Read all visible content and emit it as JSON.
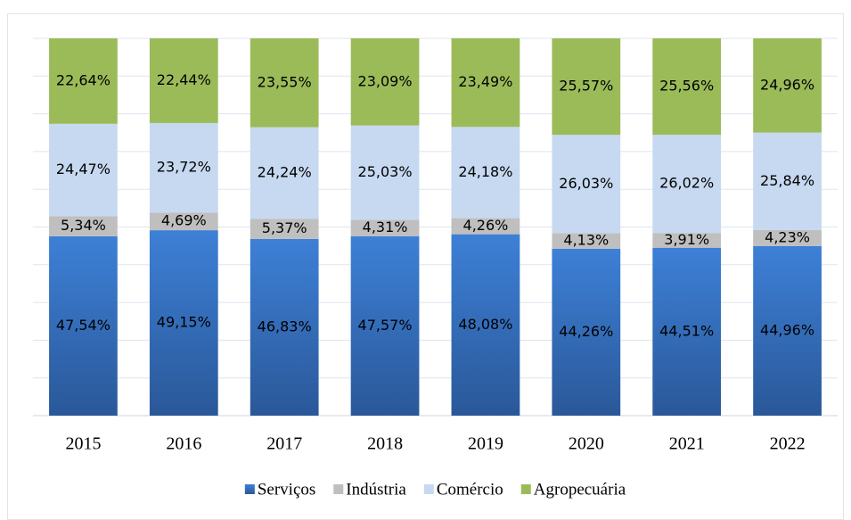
{
  "chart_data": {
    "type": "stacked_bar",
    "categories": [
      "2015",
      "2016",
      "2017",
      "2018",
      "2019",
      "2020",
      "2021",
      "2022"
    ],
    "series": [
      {
        "name": "Serviços",
        "color": "#3672c4",
        "values": [
          47.54,
          49.15,
          46.83,
          47.57,
          48.08,
          44.26,
          44.51,
          44.96
        ],
        "value_labels": [
          "47,54%",
          "49,15%",
          "46,83%",
          "47,57%",
          "48,08%",
          "44,26%",
          "44,51%",
          "44,96%"
        ]
      },
      {
        "name": "Indústria",
        "color": "#bfbfbf",
        "values": [
          5.34,
          4.69,
          5.37,
          4.31,
          4.26,
          4.13,
          3.91,
          4.23
        ],
        "value_labels": [
          "5,34%",
          "4,69%",
          "5,37%",
          "4,31%",
          "4,26%",
          "4,13%",
          "3,91%",
          "4,23%"
        ]
      },
      {
        "name": "Comércio",
        "color": "#c6d9f0",
        "values": [
          24.47,
          23.72,
          24.24,
          25.03,
          24.18,
          26.03,
          26.02,
          25.84
        ],
        "value_labels": [
          "24,47%",
          "23,72%",
          "24,24%",
          "25,03%",
          "24,18%",
          "26,03%",
          "26,02%",
          "25,84%"
        ]
      },
      {
        "name": "Agropecuária",
        "color": "#9bbb59",
        "values": [
          22.64,
          22.44,
          23.55,
          23.09,
          23.49,
          25.57,
          25.56,
          24.96
        ],
        "value_labels": [
          "22,64%",
          "22,44%",
          "23,55%",
          "23,09%",
          "23,49%",
          "25,57%",
          "25,56%",
          "24,96%"
        ]
      }
    ],
    "ylim": [
      0,
      100
    ],
    "yticks": [
      0,
      10,
      20,
      30,
      40,
      50,
      60,
      70,
      80,
      90,
      100
    ],
    "grid": true,
    "legend": "bottom"
  }
}
